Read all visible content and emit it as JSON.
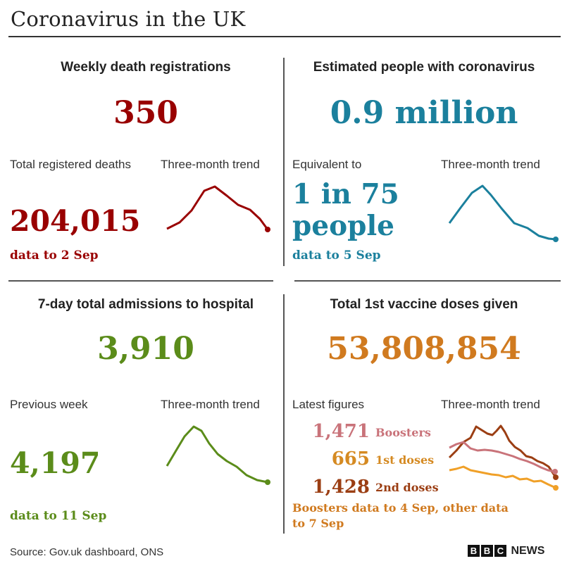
{
  "title": "Coronavirus in the UK",
  "colors": {
    "deaths": "#990000",
    "infections": "#1b809d",
    "hospital": "#5b8c1a",
    "vaccine": "#d07a1f",
    "boosters": "#c9737a",
    "first_doses": "#d58a22",
    "second_doses": "#9b3e13"
  },
  "panels": {
    "deaths": {
      "heading": "Weekly death registrations",
      "big_value": "350",
      "left_label": "Total registered deaths",
      "trend_label": "Three-month trend",
      "total_value": "204,015",
      "data_note": "data to 2 Sep"
    },
    "infections": {
      "heading": "Estimated people with coronavirus",
      "big_value": "0.9 million",
      "left_label": "Equivalent to",
      "trend_label": "Three-month trend",
      "equiv_line1": "1 in 75",
      "equiv_line2": "people",
      "data_note": "data to 5 Sep"
    },
    "hospital": {
      "heading": "7-day total admissions to hospital",
      "big_value": "3,910",
      "left_label": "Previous week",
      "trend_label": "Three-month trend",
      "previous_value": "4,197",
      "data_note": "data to 11 Sep"
    },
    "vaccine": {
      "heading": "Total 1st vaccine doses given",
      "big_value": "53,808,854",
      "left_label": "Latest figures",
      "trend_label": "Three-month trend",
      "latest": [
        {
          "value": "1,471",
          "label": "Boosters"
        },
        {
          "value": "665",
          "label": "1st doses"
        },
        {
          "value": "1,428",
          "label": "2nd doses"
        }
      ],
      "data_note_line1": "Boosters data to 4 Sep, other data",
      "data_note_line2": "to 7 Sep"
    }
  },
  "footer": {
    "source": "Source: Gov.uk dashboard, ONS",
    "logo_letters": [
      "B",
      "B",
      "C"
    ],
    "logo_word": "NEWS"
  }
}
